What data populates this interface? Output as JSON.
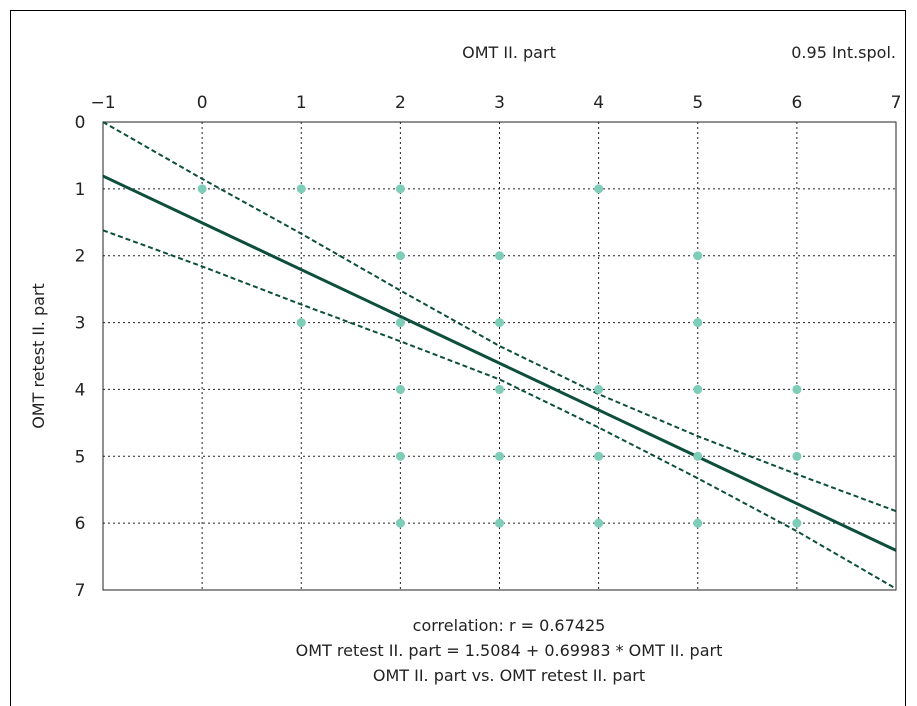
{
  "chart_data": {
    "type": "scatter",
    "xlabel": "OMT II. part",
    "ylabel": "OMT retest II. part",
    "legend_label": "0.95 Int.spol.",
    "xlim": [
      -1,
      7
    ],
    "ylim": [
      0,
      7
    ],
    "x_ticks": [
      "−1",
      "0",
      "1",
      "2",
      "3",
      "4",
      "5",
      "6",
      "7"
    ],
    "y_ticks": [
      "0",
      "1",
      "2",
      "3",
      "4",
      "5",
      "6",
      "7"
    ],
    "x_axis_position": "top",
    "y_axis_inverted": true,
    "grid": true,
    "points": [
      {
        "x": 0,
        "y": 1
      },
      {
        "x": 1,
        "y": 1
      },
      {
        "x": 2,
        "y": 1
      },
      {
        "x": 4,
        "y": 1
      },
      {
        "x": 2,
        "y": 2
      },
      {
        "x": 3,
        "y": 2
      },
      {
        "x": 5,
        "y": 2
      },
      {
        "x": 1,
        "y": 3
      },
      {
        "x": 2,
        "y": 3
      },
      {
        "x": 3,
        "y": 3
      },
      {
        "x": 5,
        "y": 3
      },
      {
        "x": 2,
        "y": 4
      },
      {
        "x": 3,
        "y": 4
      },
      {
        "x": 4,
        "y": 4
      },
      {
        "x": 5,
        "y": 4
      },
      {
        "x": 6,
        "y": 4
      },
      {
        "x": 2,
        "y": 5
      },
      {
        "x": 3,
        "y": 5
      },
      {
        "x": 4,
        "y": 5
      },
      {
        "x": 5,
        "y": 5
      },
      {
        "x": 6,
        "y": 5
      },
      {
        "x": 2,
        "y": 6
      },
      {
        "x": 3,
        "y": 6
      },
      {
        "x": 4,
        "y": 6
      },
      {
        "x": 5,
        "y": 6
      },
      {
        "x": 6,
        "y": 6
      }
    ],
    "regression": {
      "intercept": 1.5084,
      "slope": 0.69983
    },
    "confidence_upper": [
      [
        -1,
        0.0
      ],
      [
        0,
        0.85
      ],
      [
        1,
        1.67
      ],
      [
        2,
        2.52
      ],
      [
        3,
        3.35
      ],
      [
        4,
        4.07
      ],
      [
        5,
        4.7
      ],
      [
        6,
        5.27
      ],
      [
        7,
        5.82
      ]
    ],
    "confidence_lower": [
      [
        -1,
        1.62
      ],
      [
        0,
        2.16
      ],
      [
        1,
        2.73
      ],
      [
        2,
        3.28
      ],
      [
        3,
        3.85
      ],
      [
        4,
        4.57
      ],
      [
        5,
        5.33
      ],
      [
        6,
        6.12
      ],
      [
        7,
        6.98
      ]
    ],
    "colors": {
      "points": "#7ecdb8",
      "line": "#0d4f3c",
      "grid": "#222222"
    },
    "captions": [
      "correlation: r = 0.67425",
      "OMT retest II. part = 1.5084 + 0.69983 * OMT II. part",
      "OMT II. part vs. OMT retest II. part"
    ]
  }
}
